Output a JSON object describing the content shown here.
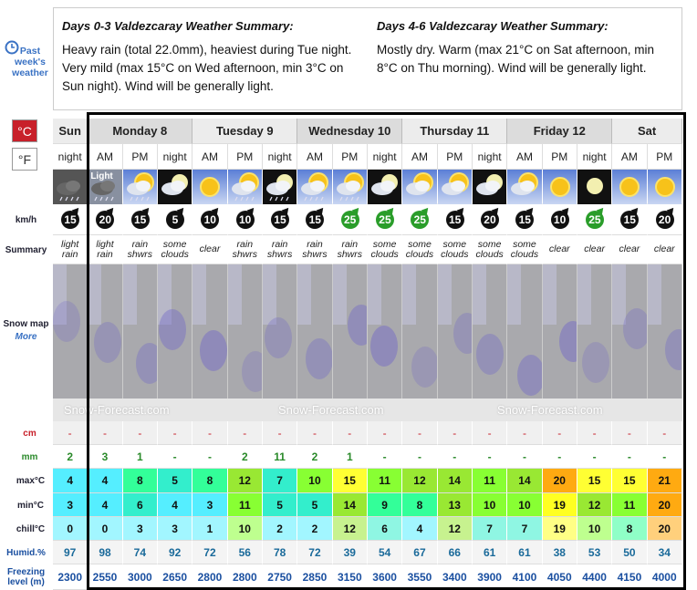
{
  "sidebar": {
    "past_weather": "Past week's weather",
    "celsius": "°C",
    "fahrenheit": "°F",
    "wind_label": "km/h",
    "summary_label": "Summary",
    "snow_map_label": "Snow map",
    "snow_map_more": "More",
    "snow_label": "cm",
    "rain_label": "mm",
    "max_label": "max°C",
    "min_label": "min°C",
    "chill_label": "chill°C",
    "humid_label": "Humid.%",
    "freezing_label": "Freezing level (m)"
  },
  "summaries": [
    {
      "title": "Days 0-3 Valdezcaray Weather Summary:",
      "text": "Heavy rain (total 22.0mm), heaviest during Tue night. Very mild (max 15°C on Wed afternoon, min 3°C on Sun night). Wind will be generally light."
    },
    {
      "title": "Days 4-6 Valdezcaray Weather Summary:",
      "text": "Mostly dry. Warm (max 21°C on Sat afternoon, min 8°C on Thu morning). Wind will be generally light."
    }
  ],
  "watermark": "Snow-Forecast.com",
  "days": [
    {
      "name": "Sun",
      "periods": [
        {
          "period": "night",
          "wind": 15,
          "summary": "light rain",
          "snow": "-",
          "rain": 2,
          "max": 4,
          "min": 3,
          "chill": 0,
          "humid": 97,
          "freezing": 2300
        }
      ]
    },
    {
      "name": "Monday 8",
      "periods": [
        {
          "period": "AM",
          "icon_label": "Light",
          "wind": 20,
          "summary": "light rain",
          "snow": "-",
          "rain": 3,
          "max": 4,
          "min": 4,
          "chill": 0,
          "humid": 98,
          "freezing": 2550
        },
        {
          "period": "PM",
          "wind": 15,
          "summary": "rain shwrs",
          "snow": "-",
          "rain": 1,
          "max": 8,
          "min": 6,
          "chill": 3,
          "humid": 74,
          "freezing": 3000
        },
        {
          "period": "night",
          "wind": 5,
          "summary": "some clouds",
          "snow": "-",
          "rain": "-",
          "max": 5,
          "min": 4,
          "chill": 3,
          "humid": 92,
          "freezing": 2650
        }
      ]
    },
    {
      "name": "Tuesday 9",
      "periods": [
        {
          "period": "AM",
          "wind": 10,
          "summary": "clear",
          "snow": "-",
          "rain": "-",
          "max": 8,
          "min": 3,
          "chill": 1,
          "humid": 72,
          "freezing": 2800
        },
        {
          "period": "PM",
          "wind": 10,
          "summary": "rain shwrs",
          "snow": "-",
          "rain": 2,
          "max": 12,
          "min": 11,
          "chill": 10,
          "humid": 56,
          "freezing": 2800
        },
        {
          "period": "night",
          "wind": 15,
          "summary": "rain shwrs",
          "snow": "-",
          "rain": 11,
          "max": 7,
          "min": 5,
          "chill": 2,
          "humid": 78,
          "freezing": 2750
        }
      ]
    },
    {
      "name": "Wednesday 10",
      "periods": [
        {
          "period": "AM",
          "wind": 15,
          "summary": "rain shwrs",
          "snow": "-",
          "rain": 2,
          "max": 10,
          "min": 5,
          "chill": 2,
          "humid": 72,
          "freezing": 2850
        },
        {
          "period": "PM",
          "wind": 25,
          "summary": "rain shwrs",
          "snow": "-",
          "rain": 1,
          "max": 15,
          "min": 14,
          "chill": 12,
          "humid": 39,
          "freezing": 3150
        },
        {
          "period": "night",
          "wind": 25,
          "summary": "some clouds",
          "snow": "-",
          "rain": "-",
          "max": 11,
          "min": 9,
          "chill": 6,
          "humid": 54,
          "freezing": 3600
        }
      ]
    },
    {
      "name": "Thursday 11",
      "periods": [
        {
          "period": "AM",
          "wind": 25,
          "summary": "some clouds",
          "snow": "-",
          "rain": "-",
          "max": 12,
          "min": 8,
          "chill": 4,
          "humid": 67,
          "freezing": 3550
        },
        {
          "period": "PM",
          "wind": 15,
          "summary": "some clouds",
          "snow": "-",
          "rain": "-",
          "max": 14,
          "min": 13,
          "chill": 12,
          "humid": 66,
          "freezing": 3400
        },
        {
          "period": "night",
          "wind": 20,
          "summary": "some clouds",
          "snow": "-",
          "rain": "-",
          "max": 11,
          "min": 10,
          "chill": 7,
          "humid": 61,
          "freezing": 3900
        }
      ]
    },
    {
      "name": "Friday 12",
      "periods": [
        {
          "period": "AM",
          "wind": 15,
          "summary": "some clouds",
          "snow": "-",
          "rain": "-",
          "max": 14,
          "min": 10,
          "chill": 7,
          "humid": 61,
          "freezing": 4100
        },
        {
          "period": "PM",
          "wind": 10,
          "summary": "clear",
          "snow": "-",
          "rain": "-",
          "max": 20,
          "min": 19,
          "chill": 19,
          "humid": 38,
          "freezing": 4050
        },
        {
          "period": "night",
          "wind": 25,
          "summary": "clear",
          "snow": "-",
          "rain": "-",
          "max": 15,
          "min": 12,
          "chill": 10,
          "humid": 53,
          "freezing": 4400
        }
      ]
    },
    {
      "name": "Sat",
      "periods": [
        {
          "period": "AM",
          "wind": 15,
          "summary": "clear",
          "snow": "-",
          "rain": "-",
          "max": 15,
          "min": 11,
          "chill": 8,
          "humid": 50,
          "freezing": 4150
        },
        {
          "period": "PM",
          "wind": 20,
          "summary": "clear",
          "snow": "-",
          "rain": "-",
          "max": 21,
          "min": 20,
          "chill": 20,
          "humid": 34,
          "freezing": 4000
        }
      ]
    }
  ]
}
